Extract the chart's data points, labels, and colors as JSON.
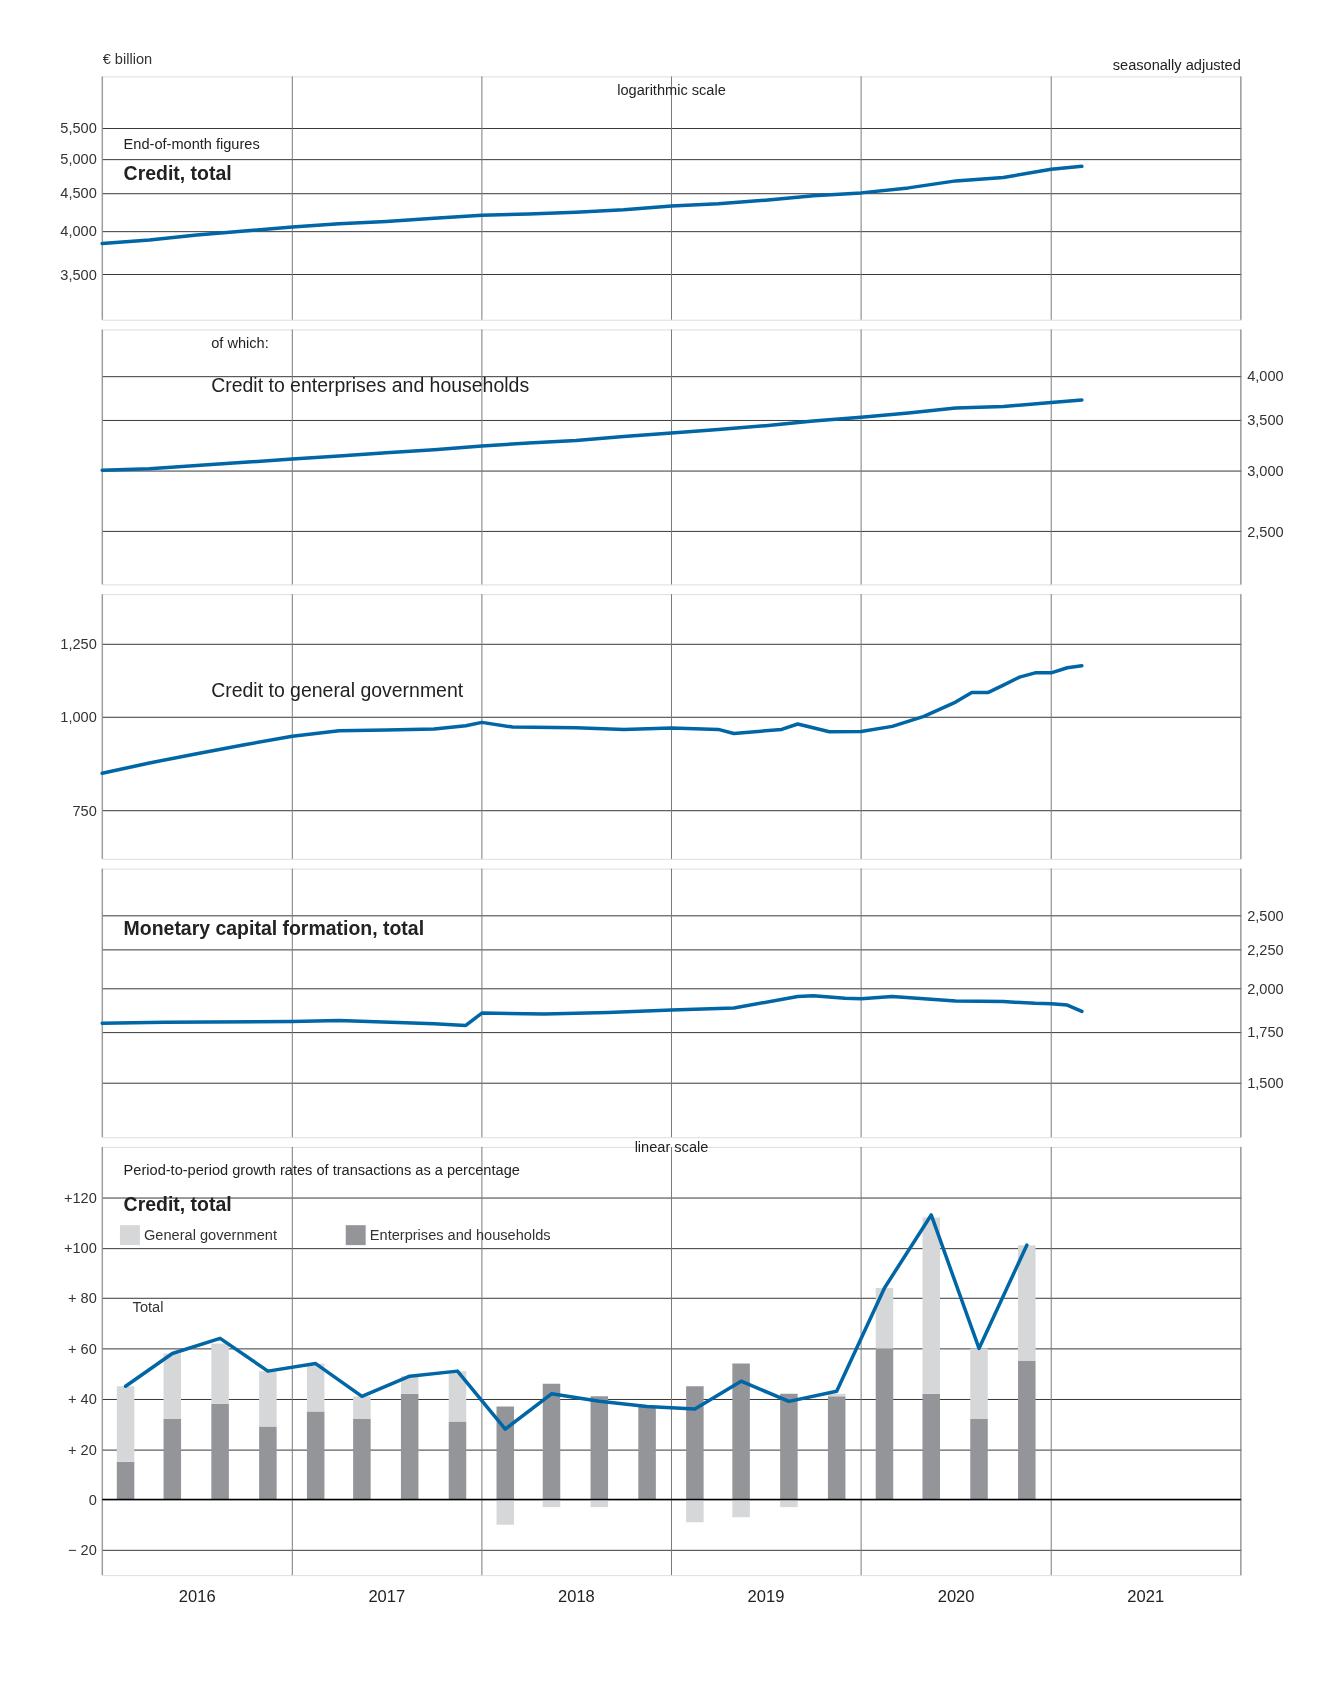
{
  "chart_data": [
    {
      "type": "line",
      "title": "Credit, total",
      "subtitle": "End-of-month figures",
      "ylabel": "€ billion",
      "annotations": [
        "logarithmic scale",
        "seasonally adjusted"
      ],
      "log": true,
      "grid": true,
      "tick_labels": "y",
      "xlim": [
        "2016-01",
        "2022-01"
      ],
      "xticks": [
        {
          "value": "2016-01",
          "label": null
        },
        {
          "value": "2017-01",
          "label": null
        },
        {
          "value": "2018-01",
          "label": null
        },
        {
          "value": "2019-01",
          "label": null
        },
        {
          "value": "2020-01",
          "label": null
        },
        {
          "value": "2021-01",
          "label": null
        },
        {
          "value": "2022-01",
          "label": null
        }
      ],
      "ylim": [
        3040,
        6450
      ],
      "yticks": [
        {
          "value": 3500,
          "label": "3,500"
        },
        {
          "value": 4000,
          "label": "4,000"
        },
        {
          "value": 4500,
          "label": "4,500"
        },
        {
          "value": 5000,
          "label": "5,000"
        },
        {
          "value": 5500,
          "label": "5,500"
        }
      ],
      "series": [
        {
          "color": "#0066a5",
          "x": [
            "2016-01",
            "2016-04",
            "2016-07",
            "2016-10",
            "2017-01",
            "2017-04",
            "2017-07",
            "2017-10",
            "2018-01",
            "2018-04",
            "2018-07",
            "2018-10",
            "2019-01",
            "2019-04",
            "2019-07",
            "2019-10",
            "2020-01",
            "2020-04",
            "2020-07",
            "2020-10",
            "2021-01",
            "2021-03"
          ],
          "values": [
            3848,
            3890,
            3950,
            4000,
            4050,
            4090,
            4120,
            4160,
            4200,
            4215,
            4240,
            4270,
            4320,
            4350,
            4400,
            4460,
            4500,
            4570,
            4670,
            4720,
            4840,
            4886
          ]
        }
      ]
    },
    {
      "type": "line",
      "title": "Credit to enterprises and households",
      "subtitle": "of which:",
      "log": "y2",
      "grid": true,
      "tick_labels": "y",
      "xlim": [
        "2016-01",
        "2022-01"
      ],
      "xticks": [
        {
          "value": "2016-01",
          "label": null
        },
        {
          "value": "2017-01",
          "label": null
        },
        {
          "value": "2018-01",
          "label": null
        },
        {
          "value": "2019-01",
          "label": null
        },
        {
          "value": "2020-01",
          "label": null
        },
        {
          "value": "2021-01",
          "label": null
        },
        {
          "value": "2022-01",
          "label": null
        }
      ],
      "y2lim": [
        2130,
        4600
      ],
      "y2ticks": [
        {
          "value": 2500,
          "label": "2,500"
        },
        {
          "value": 3000,
          "label": "3,000"
        },
        {
          "value": 3500,
          "label": "3,500"
        },
        {
          "value": 4000,
          "label": "4,000"
        }
      ],
      "series": [
        {
          "color": "#0066a5",
          "axis": "y2",
          "x": [
            "2016-01",
            "2016-04",
            "2016-07",
            "2016-10",
            "2017-01",
            "2017-04",
            "2017-07",
            "2017-10",
            "2018-01",
            "2018-04",
            "2018-07",
            "2018-10",
            "2019-01",
            "2019-04",
            "2019-07",
            "2019-10",
            "2020-01",
            "2020-04",
            "2020-07",
            "2020-10",
            "2021-01",
            "2021-03"
          ],
          "values": [
            3008,
            3020,
            3050,
            3080,
            3110,
            3140,
            3170,
            3200,
            3235,
            3265,
            3290,
            3330,
            3365,
            3400,
            3440,
            3490,
            3530,
            3575,
            3630,
            3645,
            3690,
            3718
          ]
        }
      ]
    },
    {
      "type": "line",
      "title": "Credit to general government",
      "log": true,
      "grid": true,
      "tick_labels": "y",
      "xlim": [
        "2016-01",
        "2022-01"
      ],
      "xticks": [
        {
          "value": "2016-01",
          "label": null
        },
        {
          "value": "2017-01",
          "label": null
        },
        {
          "value": "2018-01",
          "label": null
        },
        {
          "value": "2019-01",
          "label": null
        },
        {
          "value": "2020-01",
          "label": null
        },
        {
          "value": "2021-01",
          "label": null
        },
        {
          "value": "2022-01",
          "label": null
        }
      ],
      "ylim": [
        646,
        1455
      ],
      "yticks": [
        {
          "value": 750,
          "label": "750"
        },
        {
          "value": 1000,
          "label": "1,000"
        },
        {
          "value": 1250,
          "label": "1,250"
        }
      ],
      "series": [
        {
          "color": "#0066a5",
          "x": [
            "2016-01",
            "2016-04",
            "2016-07",
            "2016-10",
            "2017-01",
            "2017-04",
            "2017-07",
            "2017-10",
            "2017-12",
            "2018-01",
            "2018-03",
            "2018-07",
            "2018-10",
            "2019-01",
            "2019-04",
            "2019-05",
            "2019-08",
            "2019-09",
            "2019-11",
            "2020-01",
            "2020-03",
            "2020-05",
            "2020-07",
            "2020-08",
            "2020-09",
            "2020-10",
            "2020-11",
            "2020-12",
            "2021-01",
            "2021-02",
            "2021-03"
          ],
          "values": [
            840,
            867,
            892,
            917,
            941,
            957,
            959,
            962,
            972,
            982,
            968,
            966,
            961,
            965,
            961,
            949,
            961,
            977,
            954,
            955,
            970,
            1000,
            1045,
            1076,
            1076,
            1101,
            1128,
            1143,
            1143,
            1161,
            1168
          ]
        }
      ]
    },
    {
      "type": "line",
      "title": "Monetary capital formation, total",
      "log": "y2",
      "grid": true,
      "tick_labels": "y",
      "xlim": [
        "2016-01",
        "2022-01"
      ],
      "xticks": [
        {
          "value": "2016-01",
          "label": null
        },
        {
          "value": "2017-01",
          "label": null
        },
        {
          "value": "2018-01",
          "label": null
        },
        {
          "value": "2019-01",
          "label": null
        },
        {
          "value": "2020-01",
          "label": null
        },
        {
          "value": "2021-01",
          "label": null
        },
        {
          "value": "2022-01",
          "label": null
        }
      ],
      "y2lim": [
        1268,
        2884
      ],
      "y2ticks": [
        {
          "value": 1500,
          "label": "1,500"
        },
        {
          "value": 1750,
          "label": "1,750"
        },
        {
          "value": 2000,
          "label": "2,000"
        },
        {
          "value": 2250,
          "label": "2,250"
        },
        {
          "value": 2500,
          "label": "2,500"
        }
      ],
      "series": [
        {
          "color": "#0066a5",
          "axis": "y2",
          "x": [
            "2016-01",
            "2016-05",
            "2017-01",
            "2017-04",
            "2017-10",
            "2017-12",
            "2018-01",
            "2018-05",
            "2018-09",
            "2019-01",
            "2019-05",
            "2019-09",
            "2019-10",
            "2019-12",
            "2020-01",
            "2020-03",
            "2020-05",
            "2020-07",
            "2020-10",
            "2020-12",
            "2021-01",
            "2021-02",
            "2021-03"
          ],
          "values": [
            1797,
            1803,
            1806,
            1812,
            1794,
            1785,
            1854,
            1848,
            1857,
            1871,
            1883,
            1950,
            1955,
            1940,
            1937,
            1950,
            1937,
            1924,
            1920,
            1910,
            1908,
            1900,
            1863
          ]
        }
      ]
    },
    {
      "type": "bar",
      "stacked": true,
      "title": "Credit, total",
      "subtitle": "Period-to-period growth rates of transactions as a percentage",
      "annotations": [
        "linear scale"
      ],
      "grid": true,
      "legend": "top left",
      "xlim": [
        "2016-01",
        "2022-01"
      ],
      "xticks": [
        {
          "value": "2016-01",
          "label": null
        },
        {
          "value": "2017-01",
          "label": null
        },
        {
          "value": "2018-01",
          "label": null
        },
        {
          "value": "2019-01",
          "label": null
        },
        {
          "value": "2020-01",
          "label": null
        },
        {
          "value": "2021-01",
          "label": null
        },
        {
          "value": "2022-01",
          "label": null
        },
        {
          "value": "2016-07",
          "label": "2016"
        },
        {
          "value": "2017-07",
          "label": "2017"
        },
        {
          "value": "2018-07",
          "label": "2018"
        },
        {
          "value": "2019-07",
          "label": "2019"
        },
        {
          "value": "2020-07",
          "label": "2020"
        },
        {
          "value": "2021-07",
          "label": "2021"
        }
      ],
      "ylim": [
        -30,
        140
      ],
      "yticks": [
        {
          "value": -20,
          "label": "− 20"
        },
        {
          "value": 0,
          "label": "0"
        },
        {
          "value": 20,
          "label": "+ 20"
        },
        {
          "value": 40,
          "label": "+ 40"
        },
        {
          "value": 60,
          "label": "+ 60"
        },
        {
          "value": 80,
          "label": "+ 80"
        },
        {
          "value": 100,
          "label": "+100"
        },
        {
          "value": 120,
          "label": "+120"
        }
      ],
      "ref_lines": [
        {
          "axis": "y",
          "value": 0,
          "color": "#000000"
        }
      ],
      "x": [
        "2016-02-15",
        "2016-05-15",
        "2016-08-15",
        "2016-11-15",
        "2017-02-15",
        "2017-05-15",
        "2017-08-15",
        "2017-11-15",
        "2018-02-15",
        "2018-05-15",
        "2018-08-15",
        "2018-11-15",
        "2019-02-15",
        "2019-05-15",
        "2019-08-15",
        "2019-11-15",
        "2020-02-15",
        "2020-05-15",
        "2020-08-15",
        "2020-11-15"
      ],
      "series": [
        {
          "name": "Enterprises and households",
          "color": "#939598",
          "values": [
            15,
            32,
            38,
            29,
            35,
            32,
            42,
            31,
            37,
            46,
            41,
            37,
            45,
            54,
            42,
            41,
            60,
            42,
            32,
            55
          ]
        },
        {
          "name": "General government",
          "color": "#d6d7d9",
          "values": [
            30,
            26,
            24,
            22,
            19,
            9,
            7,
            20,
            -10,
            -3,
            -3,
            null,
            -9,
            -7,
            -3,
            1,
            24,
            70,
            28,
            46
          ]
        },
        {
          "name": "Total",
          "type": "line",
          "color": "#0066a5",
          "values": [
            45,
            58,
            64,
            51,
            54,
            41,
            49,
            51,
            28,
            42,
            39,
            37,
            36,
            47,
            39,
            43,
            84,
            113,
            60,
            101
          ]
        }
      ]
    }
  ]
}
